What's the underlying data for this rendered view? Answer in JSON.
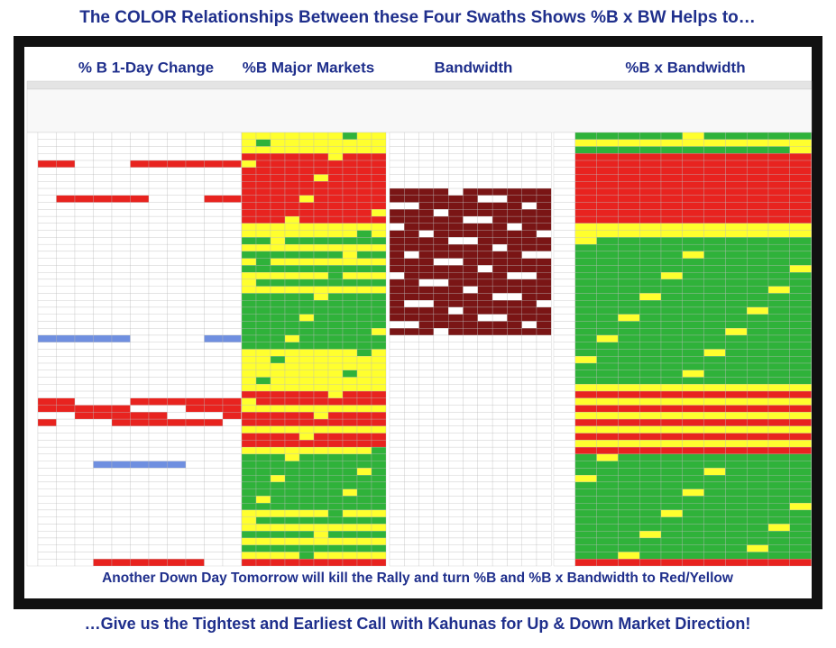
{
  "header": {
    "title": "The COLOR Relationships Between these Four Swaths Shows %B x BW Helps to…"
  },
  "sections": [
    "% B 1-Day Change",
    "%B Major Markets",
    "Bandwidth",
    "%B x Bandwidth"
  ],
  "overlay": "Another Down Day Tomorrow will kill the Rally and turn %B and %B x Bandwidth to Red/Yellow",
  "footer": "…Give us the Tightest and Earliest Call with Kahunas for Up & Down Market Direction!"
}
